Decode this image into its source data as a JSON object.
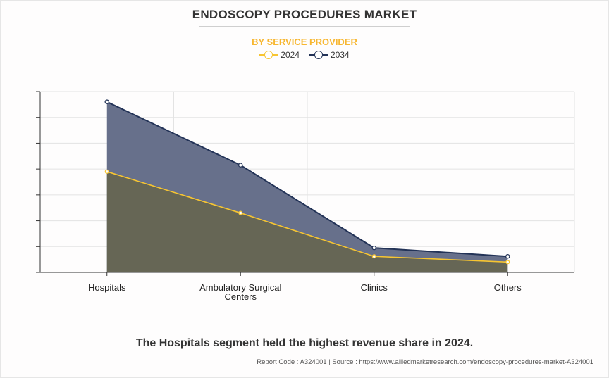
{
  "header": {
    "title": "ENDOSCOPY PROCEDURES MARKET",
    "subtitle": "BY SERVICE PROVIDER"
  },
  "colors": {
    "series_2024_line": "#f7c531",
    "series_2024_fill": "#666655",
    "series_2034_line": "#233357",
    "series_2034_fill": "#67708b",
    "subtitle": "#f7b731"
  },
  "chart_data": {
    "type": "area",
    "categories": [
      "Hospitals",
      "Ambulatory Surgical Centers",
      "Clinics",
      "Others"
    ],
    "category_lines": [
      [
        "Hospitals"
      ],
      [
        "Ambulatory Surgical",
        "Centers"
      ],
      [
        "Clinics"
      ],
      [
        "Others"
      ]
    ],
    "series": [
      {
        "name": "2034",
        "values": [
          6.6,
          4.15,
          0.95,
          0.62
        ]
      },
      {
        "name": "2024",
        "values": [
          3.9,
          2.3,
          0.62,
          0.4
        ]
      }
    ],
    "ylim": [
      0,
      7
    ],
    "ytick_step": 1,
    "y_tick_labels_shown": false,
    "grid": true,
    "legend": "top-center"
  },
  "caption": "The Hospitals segment held the highest revenue share in 2024.",
  "footer": "Report Code : A324001  |  Source : https://www.alliedmarketresearch.com/endoscopy-procedures-market-A324001"
}
